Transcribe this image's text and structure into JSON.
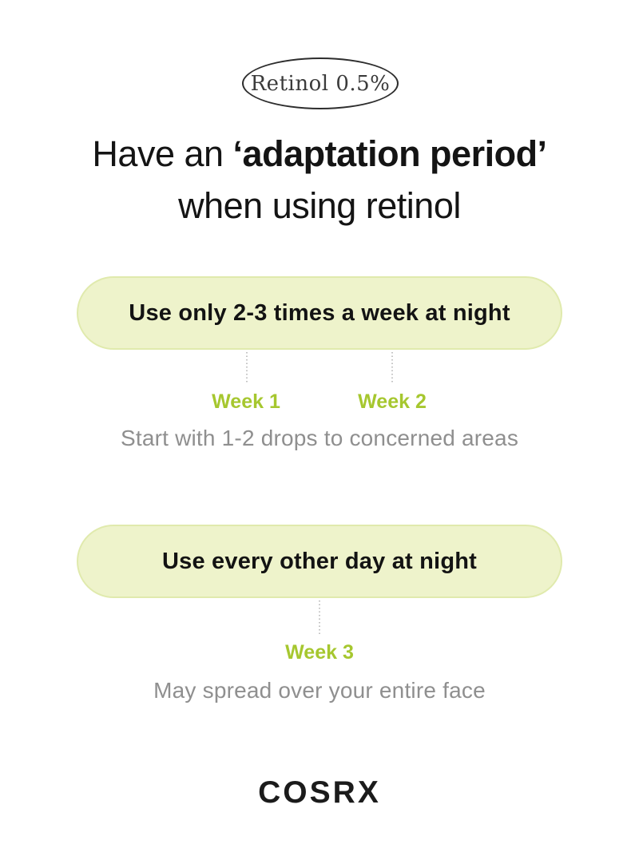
{
  "badge": {
    "label": "Retinol 0.5%"
  },
  "heading": {
    "prefix": "Have an ",
    "emphasis": "‘adaptation period’",
    "line2": "when using retinol"
  },
  "sections": [
    {
      "pill_label": "Use only 2-3 times a week at night",
      "weeks": [
        "Week 1",
        "Week 2"
      ],
      "caption": "Start with 1-2 drops to concerned areas"
    },
    {
      "pill_label": "Use every other day at night",
      "weeks": [
        "Week 3"
      ],
      "caption": "May spread over your entire face"
    }
  ],
  "footer": {
    "brand": "COSRX"
  },
  "colors": {
    "pill_background": "#eef3cb",
    "pill_border": "#e0eaad",
    "accent_green": "#a6c72f",
    "caption_gray": "#8f8f8f",
    "text_dark": "#141414",
    "page_background": "#ffffff"
  }
}
